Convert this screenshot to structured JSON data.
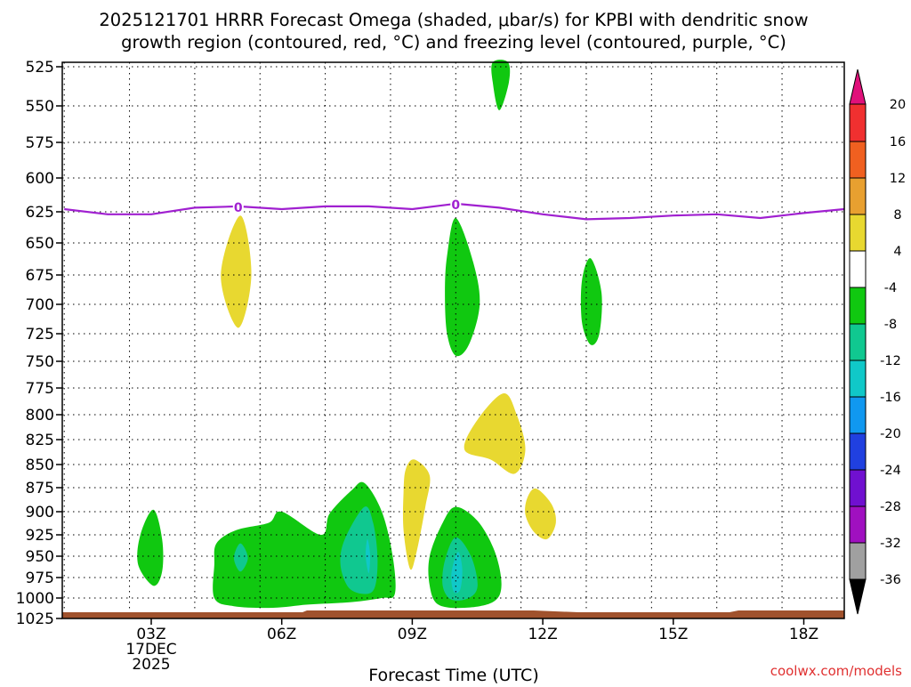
{
  "chart_data": {
    "type": "heatmap",
    "title": [
      "2025121701 HRRR Forecast Omega (shaded, μbar/s) for KPBI with dendritic snow",
      "growth region (contoured, red, °C) and freezing level (contoured, purple, °C)"
    ],
    "xlabel": "Forecast Time (UTC)",
    "ylabel": "",
    "xlim_hours": [
      1,
      19
    ],
    "ylim_hPa": [
      1025,
      520
    ],
    "x_ticks": [
      {
        "hour": 3,
        "label": "03Z",
        "sub": [
          "17DEC",
          "2025"
        ]
      },
      {
        "hour": 6,
        "label": "06Z"
      },
      {
        "hour": 9,
        "label": "09Z"
      },
      {
        "hour": 12,
        "label": "12Z"
      },
      {
        "hour": 15,
        "label": "15Z"
      },
      {
        "hour": 18,
        "label": "18Z"
      }
    ],
    "y_ticks": [
      525,
      550,
      575,
      600,
      625,
      650,
      675,
      700,
      725,
      750,
      775,
      800,
      825,
      850,
      875,
      900,
      925,
      950,
      975,
      1000,
      1025
    ],
    "colorbar": {
      "levels": [
        -36,
        -32,
        -28,
        -24,
        -20,
        -16,
        -12,
        -8,
        -4,
        4,
        8,
        12,
        16,
        20
      ],
      "label_levels": [
        20,
        16,
        12,
        8,
        4,
        -4,
        -8,
        -12,
        -16,
        -20,
        -24,
        -28,
        -32,
        -36
      ],
      "bands": [
        {
          "range": [
            16,
            20
          ],
          "color": "#f03030"
        },
        {
          "range": [
            12,
            16
          ],
          "color": "#f06020"
        },
        {
          "range": [
            8,
            12
          ],
          "color": "#e8a030"
        },
        {
          "range": [
            4,
            8
          ],
          "color": "#e8d830"
        },
        {
          "range": [
            -4,
            4
          ],
          "color": "#ffffff"
        },
        {
          "range": [
            -8,
            -4
          ],
          "color": "#10c810"
        },
        {
          "range": [
            -12,
            -8
          ],
          "color": "#10c890"
        },
        {
          "range": [
            -16,
            -12
          ],
          "color": "#10c8c8"
        },
        {
          "range": [
            -20,
            -16
          ],
          "color": "#1098f0"
        },
        {
          "range": [
            -24,
            -20
          ],
          "color": "#2040e0"
        },
        {
          "range": [
            -28,
            -24
          ],
          "color": "#7010d0"
        },
        {
          "range": [
            -32,
            -28
          ],
          "color": "#a010c0"
        },
        {
          "range": [
            -36,
            -32
          ],
          "color": "#a0a0a0"
        }
      ],
      "top_arrow_color": "#e0107a",
      "bottom_arrow_color": "#000000"
    },
    "freezing_level": {
      "contour_label": "0",
      "color": "#a020d0",
      "label_hours": [
        5,
        10
      ],
      "points": [
        [
          1,
          623
        ],
        [
          2,
          627
        ],
        [
          3,
          627
        ],
        [
          4,
          622
        ],
        [
          5,
          621
        ],
        [
          6,
          623
        ],
        [
          7,
          621
        ],
        [
          8,
          621
        ],
        [
          9,
          623
        ],
        [
          10,
          619
        ],
        [
          11,
          622
        ],
        [
          12,
          627
        ],
        [
          13,
          631
        ],
        [
          14,
          630
        ],
        [
          15,
          628
        ],
        [
          16,
          627
        ],
        [
          17,
          630
        ],
        [
          18,
          626
        ],
        [
          19,
          623
        ]
      ]
    },
    "surface_color": "#a0522d",
    "omega_regions": [
      {
        "name": "green-upper",
        "value": -6,
        "color": "#10c810",
        "points": [
          [
            10.85,
            520
          ],
          [
            11.2,
            520
          ],
          [
            11.22,
            535
          ],
          [
            11.0,
            553
          ],
          [
            10.85,
            535
          ]
        ]
      },
      {
        "name": "yellow-0500",
        "value": 6,
        "color": "#e8d830",
        "points": [
          [
            5.05,
            628
          ],
          [
            5.3,
            675
          ],
          [
            5.0,
            720
          ],
          [
            4.6,
            675
          ]
        ]
      },
      {
        "name": "green-1000",
        "value": -6,
        "color": "#10c810",
        "points": [
          [
            10.0,
            630
          ],
          [
            10.4,
            665
          ],
          [
            10.55,
            700
          ],
          [
            10.3,
            735
          ],
          [
            10.0,
            745
          ],
          [
            9.8,
            725
          ],
          [
            9.75,
            690
          ],
          [
            9.8,
            660
          ]
        ]
      },
      {
        "name": "green-1300",
        "value": -6,
        "color": "#10c810",
        "points": [
          [
            13.1,
            662
          ],
          [
            13.35,
            690
          ],
          [
            13.3,
            725
          ],
          [
            13.1,
            735
          ],
          [
            12.9,
            715
          ],
          [
            12.9,
            680
          ]
        ]
      },
      {
        "name": "yellow-1030",
        "value": 6,
        "color": "#e8d830",
        "points": [
          [
            11.1,
            780
          ],
          [
            11.4,
            800
          ],
          [
            11.6,
            835
          ],
          [
            11.35,
            860
          ],
          [
            10.8,
            845
          ],
          [
            10.2,
            835
          ],
          [
            10.5,
            805
          ]
        ]
      },
      {
        "name": "yellow-0900",
        "value": 6,
        "color": "#e8d830",
        "points": [
          [
            9.05,
            845
          ],
          [
            9.4,
            862
          ],
          [
            9.3,
            895
          ],
          [
            9.1,
            945
          ],
          [
            8.95,
            965
          ],
          [
            8.8,
            920
          ],
          [
            8.8,
            880
          ],
          [
            8.85,
            855
          ]
        ]
      },
      {
        "name": "yellow-1200",
        "value": 6,
        "color": "#e8d830",
        "points": [
          [
            11.85,
            876
          ],
          [
            12.2,
            892
          ],
          [
            12.3,
            912
          ],
          [
            12.1,
            930
          ],
          [
            11.8,
            922
          ],
          [
            11.6,
            903
          ],
          [
            11.65,
            885
          ]
        ]
      },
      {
        "name": "green-0300",
        "value": -6,
        "color": "#10c810",
        "points": [
          [
            3.05,
            898
          ],
          [
            3.25,
            930
          ],
          [
            3.25,
            968
          ],
          [
            3.05,
            985
          ],
          [
            2.7,
            960
          ],
          [
            2.75,
            925
          ]
        ]
      },
      {
        "name": "green-0700",
        "value": -6,
        "color": "#10c810",
        "points": [
          [
            4.45,
            960
          ],
          [
            4.5,
            935
          ],
          [
            4.95,
            920
          ],
          [
            5.7,
            912
          ],
          [
            6.0,
            900
          ],
          [
            6.9,
            925
          ],
          [
            7.1,
            902
          ],
          [
            7.6,
            878
          ],
          [
            7.9,
            870
          ],
          [
            8.3,
            900
          ],
          [
            8.55,
            950
          ],
          [
            8.6,
            995
          ],
          [
            8.3,
            1000
          ],
          [
            7.6,
            1005
          ],
          [
            6.6,
            1008
          ],
          [
            5.8,
            1012
          ],
          [
            4.9,
            1010
          ],
          [
            4.45,
            1000
          ]
        ]
      },
      {
        "name": "teal-0800",
        "value": -10,
        "color": "#10c890",
        "points": [
          [
            7.9,
            895
          ],
          [
            8.1,
            912
          ],
          [
            8.2,
            950
          ],
          [
            8.15,
            985
          ],
          [
            7.95,
            995
          ],
          [
            7.55,
            988
          ],
          [
            7.35,
            960
          ],
          [
            7.45,
            930
          ]
        ]
      },
      {
        "name": "teal-0510",
        "value": -10,
        "color": "#10c890",
        "points": [
          [
            5.05,
            935
          ],
          [
            5.22,
            952
          ],
          [
            5.05,
            968
          ],
          [
            4.9,
            952
          ]
        ]
      },
      {
        "name": "green-1000b",
        "value": -6,
        "color": "#10c810",
        "points": [
          [
            10.0,
            895
          ],
          [
            10.5,
            910
          ],
          [
            10.9,
            945
          ],
          [
            11.05,
            985
          ],
          [
            10.85,
            1005
          ],
          [
            10.2,
            1012
          ],
          [
            9.6,
            1008
          ],
          [
            9.4,
            985
          ],
          [
            9.4,
            950
          ],
          [
            9.7,
            912
          ]
        ]
      },
      {
        "name": "teal-1000",
        "value": -10,
        "color": "#10c890",
        "points": [
          [
            10.0,
            928
          ],
          [
            10.35,
            950
          ],
          [
            10.5,
            985
          ],
          [
            10.3,
            1000
          ],
          [
            9.9,
            1002
          ],
          [
            9.7,
            985
          ],
          [
            9.75,
            955
          ]
        ]
      },
      {
        "name": "cyan-1000",
        "value": -14,
        "color": "#10c8c8",
        "points": [
          [
            10.05,
            945
          ],
          [
            10.15,
            965
          ],
          [
            10.1,
            990
          ],
          [
            9.95,
            992
          ],
          [
            9.9,
            970
          ]
        ]
      },
      {
        "name": "cyan-0800",
        "value": -14,
        "color": "#10c8c8",
        "points": [
          [
            7.97,
            930
          ],
          [
            8.03,
            948
          ],
          [
            8.0,
            970
          ],
          [
            7.93,
            950
          ]
        ]
      }
    ]
  },
  "credit": "coolwx.com/models"
}
